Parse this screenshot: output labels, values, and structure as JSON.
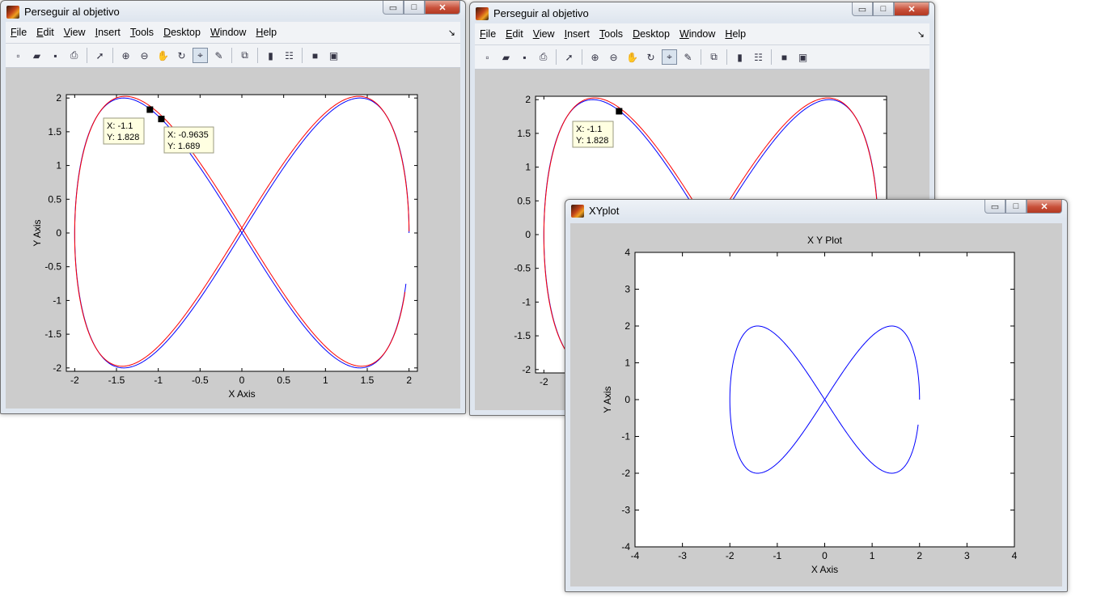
{
  "windows": {
    "fig1": {
      "title": "Perseguir al objetivo"
    },
    "fig2": {
      "title": "Perseguir al objetivo"
    },
    "xyplot": {
      "title": "XYplot"
    }
  },
  "menu": [
    {
      "label": "File",
      "key": "F",
      "rest": "ile"
    },
    {
      "label": "Edit",
      "key": "E",
      "rest": "dit"
    },
    {
      "label": "View",
      "key": "V",
      "rest": "iew"
    },
    {
      "label": "Insert",
      "key": "I",
      "rest": "nsert"
    },
    {
      "label": "Tools",
      "key": "T",
      "rest": "ools"
    },
    {
      "label": "Desktop",
      "key": "D",
      "rest": "esktop"
    },
    {
      "label": "Window",
      "key": "W",
      "rest": "indow"
    },
    {
      "label": "Help",
      "key": "H",
      "rest": "elp"
    }
  ],
  "toolbar_icons": [
    "new-figure-icon",
    "open-file-icon",
    "save-icon",
    "print-icon",
    "|",
    "pointer-icon",
    "|",
    "zoom-in-icon",
    "zoom-out-icon",
    "pan-hand-icon",
    "rotate-3d-icon",
    "data-cursor-icon",
    "brush-icon",
    "|",
    "link-plot-icon",
    "|",
    "colorbar-icon",
    "legend-icon",
    "|",
    "hide-plot-tools-icon",
    "show-plot-tools-icon"
  ],
  "window_controls": {
    "minimize": "▭",
    "maximize": "□",
    "close": "✕"
  },
  "chart_data": [
    {
      "type": "line",
      "title": "",
      "xlabel": "X Axis",
      "ylabel": "Y Axis",
      "xlim": [
        -2.1,
        2.1
      ],
      "ylim": [
        -2.05,
        2.05
      ],
      "xticks": [
        -2,
        -1.5,
        -1,
        -0.5,
        0,
        0.5,
        1,
        1.5,
        2
      ],
      "yticks": [
        -2,
        -1.5,
        -1,
        -0.5,
        0,
        0.5,
        1,
        1.5,
        2
      ],
      "curve": "lemniscate x=2*cos(t), y=2*sin(2t)",
      "series": [
        {
          "color": "#0000ff",
          "t_start": 0,
          "t_end": 6.09
        },
        {
          "color": "#ff0000",
          "t_start": 0,
          "t_end": 6.09,
          "lag": 0.04
        }
      ],
      "datatips": [
        {
          "x": -1.1,
          "y": 1.828,
          "label_x": "X: -1.1",
          "label_y": "Y: 1.828"
        },
        {
          "x": -0.9635,
          "y": 1.689,
          "label_x": "X: -0.9635",
          "label_y": "Y: 1.689"
        }
      ]
    },
    {
      "type": "line",
      "title": "",
      "xlabel": "",
      "ylabel": "",
      "xlim": [
        -2.1,
        2.1
      ],
      "ylim": [
        -2.05,
        2.05
      ],
      "xticks": [
        -2
      ],
      "yticks": [
        -2,
        -1.5,
        -1,
        -0.5,
        0,
        0.5,
        1,
        1.5,
        2
      ],
      "series": [
        {
          "color": "#0000ff",
          "t_start": 0,
          "t_end": 6.09
        },
        {
          "color": "#ff0000",
          "t_start": 0,
          "t_end": 6.09,
          "lag": 0.04
        }
      ],
      "datatips": [
        {
          "x": -1.1,
          "y": 1.828,
          "label_x": "X: -1.1",
          "label_y": "Y: 1.828"
        }
      ]
    },
    {
      "type": "line",
      "title": "X Y Plot",
      "xlabel": "X Axis",
      "ylabel": "Y Axis",
      "xlim": [
        -4,
        4
      ],
      "ylim": [
        -4,
        4
      ],
      "xticks": [
        -4,
        -3,
        -2,
        -1,
        0,
        1,
        2,
        3,
        4
      ],
      "yticks": [
        -4,
        -3,
        -2,
        -1,
        0,
        1,
        2,
        3,
        4
      ],
      "series": [
        {
          "color": "#0000ff",
          "t_start": 0,
          "t_end": 6.11
        }
      ]
    }
  ]
}
